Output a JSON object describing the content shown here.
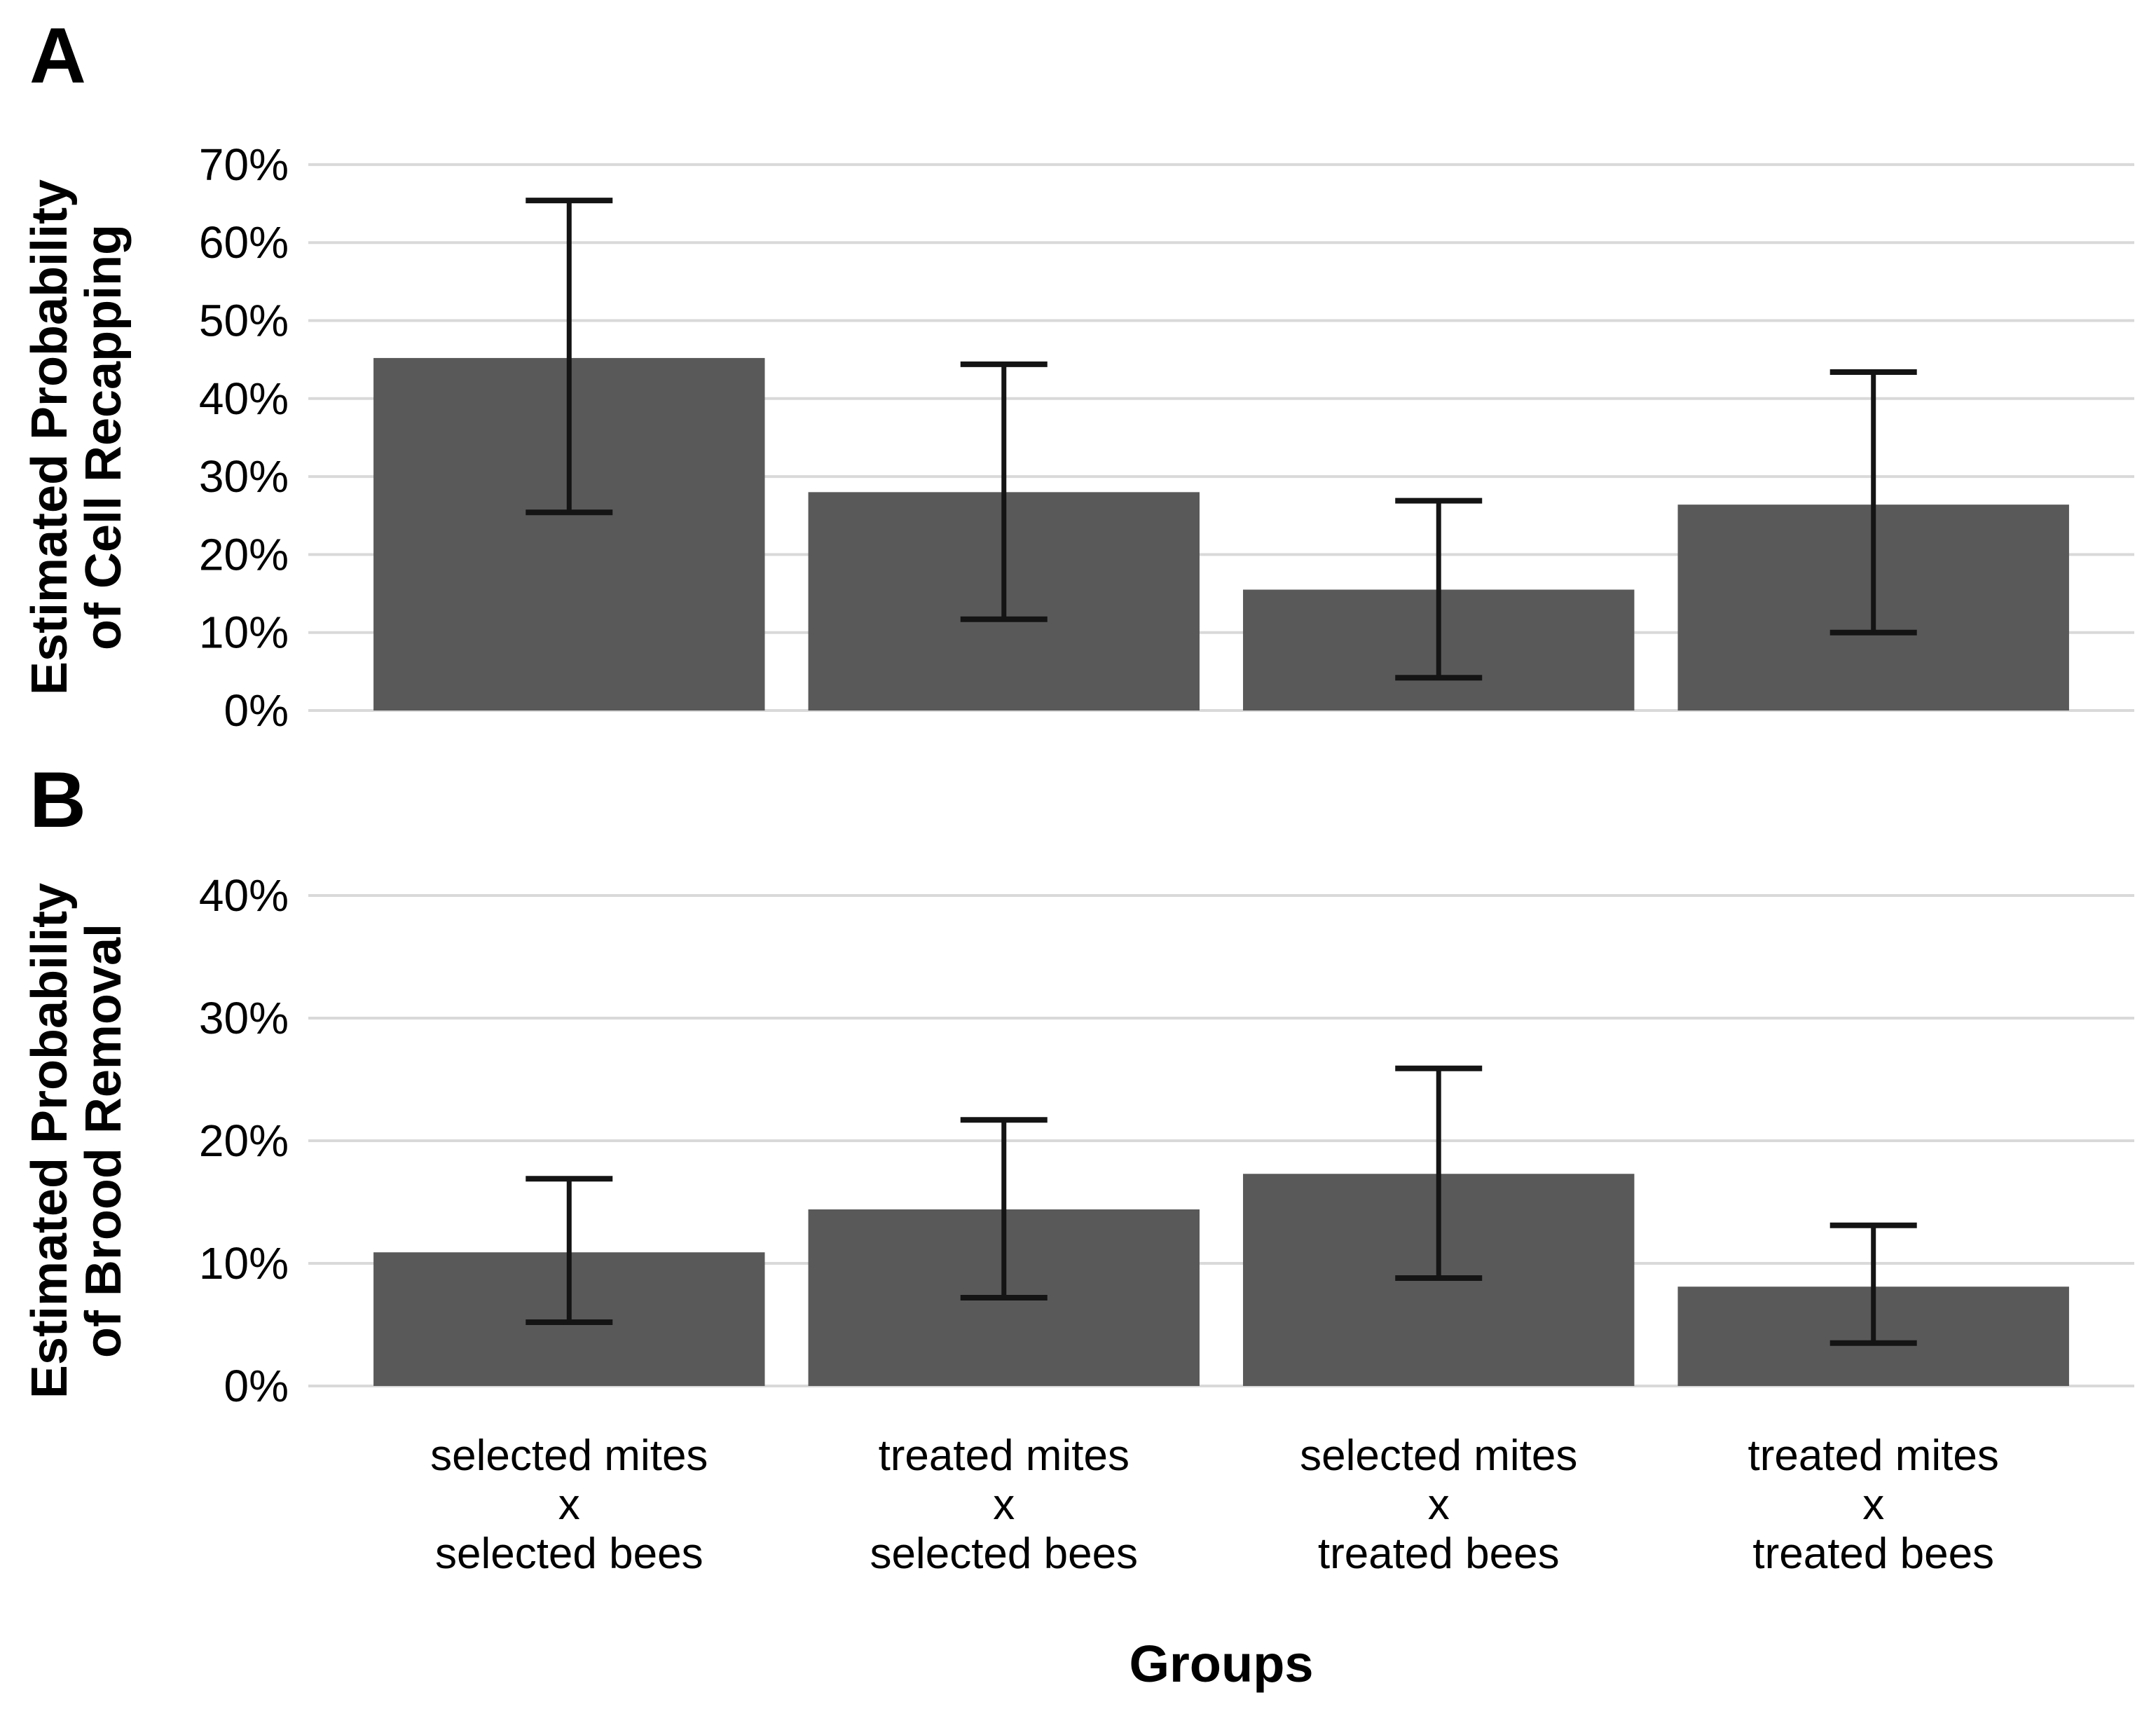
{
  "figure_type": "faceted bar chart with error bars",
  "style": {
    "background": "#ffffff",
    "bar_color": "#595959",
    "grid_color": "#d9d9d9",
    "error_bar_color": "#141414",
    "tick_label_color": "#4d4d4d",
    "category_label_color": "#4d4d4d",
    "title_color": "#000000"
  },
  "x_axis": {
    "title": "Groups",
    "category_lines": [
      [
        "selected mites",
        "x",
        "selected bees"
      ],
      [
        "treated mites",
        "x",
        "selected bees"
      ],
      [
        "selected mites",
        "x",
        "treated bees"
      ],
      [
        "treated mites",
        "x",
        "treated bees"
      ]
    ]
  },
  "chart_data": [
    {
      "type": "bar",
      "panel_label": "A",
      "ylabel": "Estimated Probability of Cell Recapping",
      "ylabel_lines": [
        "Estimated Probability",
        "of Cell Recapping"
      ],
      "categories": [
        "selected mites x selected bees",
        "treated mites x selected bees",
        "selected mites x treated bees",
        "treated mites x treated bees"
      ],
      "values": [
        45.2,
        28.0,
        15.5,
        26.4
      ],
      "error_low": [
        25.4,
        11.7,
        4.2,
        10.0
      ],
      "error_high": [
        65.4,
        44.4,
        26.9,
        43.4
      ],
      "ylim": [
        0,
        70
      ],
      "ytick_step": 10,
      "ytick_labels": [
        "0%",
        "10%",
        "20%",
        "30%",
        "40%",
        "50%",
        "60%",
        "70%"
      ],
      "grid": "horizontal-major-only",
      "legend": false
    },
    {
      "type": "bar",
      "panel_label": "B",
      "ylabel": "Estimated Probability of Brood Removal",
      "ylabel_lines": [
        "Estimated Probability",
        "of Brood Removal"
      ],
      "categories": [
        "selected mites x selected bees",
        "treated mites x selected bees",
        "selected mites x treated bees",
        "treated mites x treated bees"
      ],
      "values": [
        10.9,
        14.4,
        17.3,
        8.1
      ],
      "error_low": [
        5.2,
        7.2,
        8.8,
        3.5
      ],
      "error_high": [
        16.9,
        21.7,
        25.9,
        13.1
      ],
      "ylim": [
        0,
        40
      ],
      "ytick_step": 10,
      "ytick_labels": [
        "0%",
        "10%",
        "20%",
        "30%",
        "40%"
      ],
      "grid": "horizontal-major-only",
      "legend": false
    }
  ]
}
